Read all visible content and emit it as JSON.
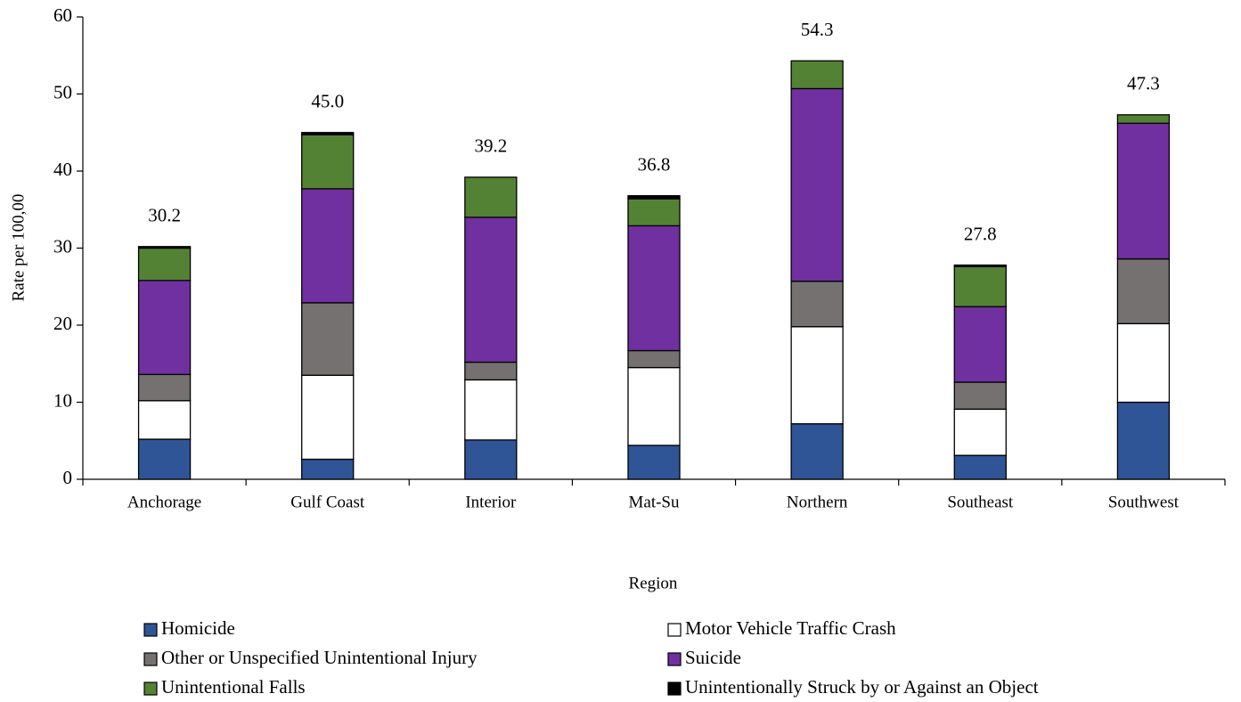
{
  "chart_data": {
    "type": "stacked_bar",
    "y_label": "Rate per 100,00",
    "x_label": "Region",
    "categories": [
      "Anchorage",
      "Gulf Coast",
      "Interior",
      "Mat-Su",
      "Northern",
      "Southeast",
      "Southwest"
    ],
    "series": [
      {
        "name": "Homicide",
        "color": "#2f5597",
        "values": [
          5.2,
          2.6,
          5.1,
          4.4,
          7.2,
          3.1,
          10.0
        ]
      },
      {
        "name": "Motor Vehicle Traffic Crash",
        "color": "#ffffff",
        "values": [
          5.0,
          10.9,
          7.8,
          10.1,
          12.6,
          6.0,
          10.2
        ]
      },
      {
        "name": "Other or Unspecified Unintentional Injury",
        "color": "#767171",
        "values": [
          3.4,
          9.4,
          2.3,
          2.2,
          5.9,
          3.5,
          8.4
        ]
      },
      {
        "name": "Suicide",
        "color": "#7030a0",
        "values": [
          12.2,
          14.8,
          18.8,
          16.2,
          25.0,
          9.8,
          17.6
        ]
      },
      {
        "name": "Unintentional Falls",
        "color": "#548235",
        "values": [
          4.2,
          7.0,
          5.2,
          3.5,
          3.6,
          5.2,
          1.1
        ]
      },
      {
        "name": "Unintentionally Struck by or Against an Object",
        "color": "#000000",
        "values": [
          0.2,
          0.3,
          0,
          0.4,
          0,
          0.2,
          0
        ]
      }
    ],
    "totals": {
      "values": [
        30.2,
        45.0,
        39.2,
        36.8,
        54.3,
        27.8,
        47.3
      ],
      "value_labels": [
        "30.2",
        "45.0",
        "39.2",
        "36.8",
        "54.3",
        "27.8",
        "47.3"
      ]
    },
    "ylim": [
      0,
      60
    ],
    "yticks": [
      0,
      10,
      20,
      30,
      40,
      50,
      60
    ],
    "grid": false
  }
}
